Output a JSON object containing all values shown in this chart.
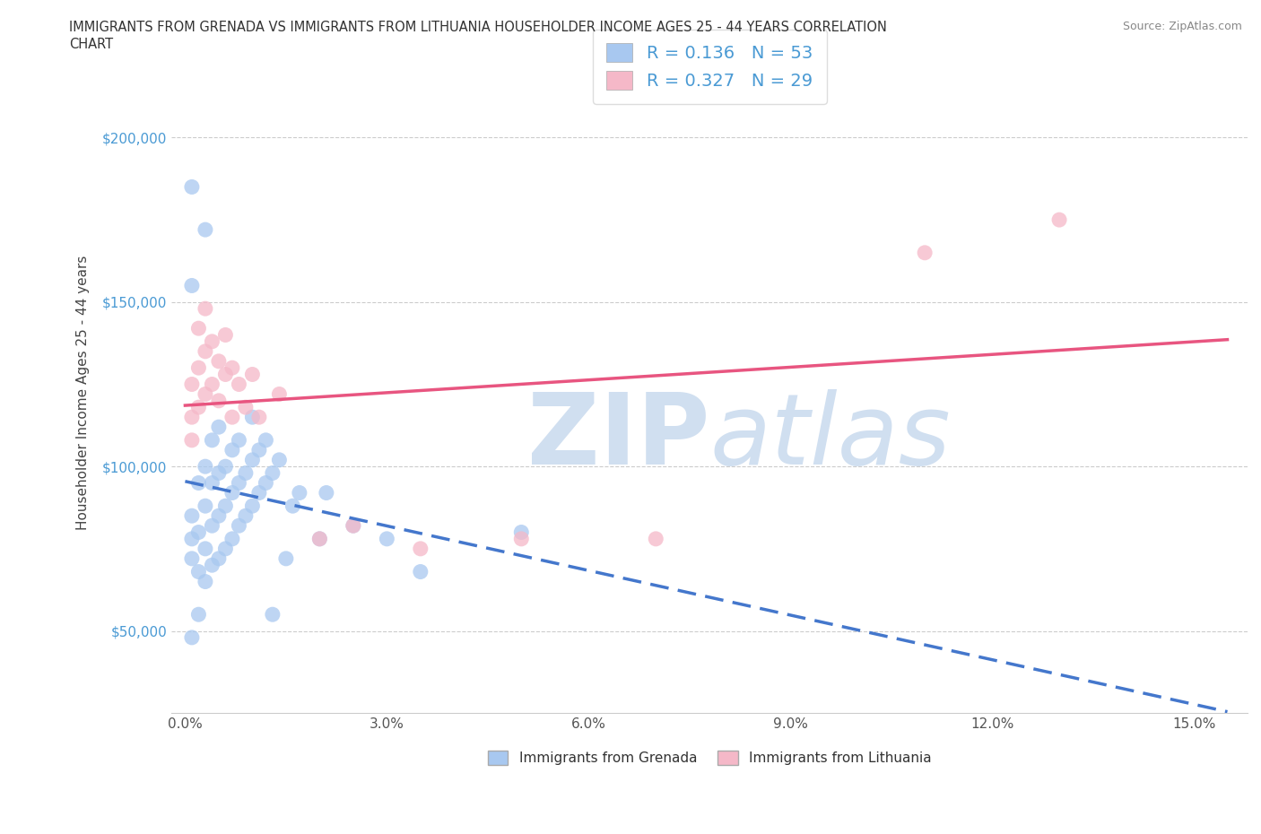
{
  "title_line1": "IMMIGRANTS FROM GRENADA VS IMMIGRANTS FROM LITHUANIA HOUSEHOLDER INCOME AGES 25 - 44 YEARS CORRELATION",
  "title_line2": "CHART",
  "source_text": "Source: ZipAtlas.com",
  "ylabel": "Householder Income Ages 25 - 44 years",
  "xlabel_ticks": [
    "0.0%",
    "3.0%",
    "6.0%",
    "9.0%",
    "12.0%",
    "15.0%"
  ],
  "xlabel_vals": [
    0.0,
    0.03,
    0.06,
    0.09,
    0.12,
    0.15
  ],
  "ytick_labels": [
    "$50,000",
    "$100,000",
    "$150,000",
    "$200,000"
  ],
  "ytick_vals": [
    50000,
    100000,
    150000,
    200000
  ],
  "xlim": [
    -0.002,
    0.158
  ],
  "ylim": [
    25000,
    220000
  ],
  "grenada_color": "#a8c8f0",
  "lithuania_color": "#f5b8c8",
  "grenada_line_color": "#4477cc",
  "lithuania_line_color": "#e85580",
  "background_color": "#ffffff",
  "watermark_color": "#d0dff0",
  "R_grenada": 0.136,
  "N_grenada": 53,
  "R_lithuania": 0.327,
  "N_lithuania": 29,
  "grenada_scatter": [
    [
      0.001,
      72000
    ],
    [
      0.001,
      78000
    ],
    [
      0.001,
      85000
    ],
    [
      0.002,
      68000
    ],
    [
      0.002,
      80000
    ],
    [
      0.002,
      95000
    ],
    [
      0.003,
      65000
    ],
    [
      0.003,
      75000
    ],
    [
      0.003,
      88000
    ],
    [
      0.003,
      100000
    ],
    [
      0.004,
      70000
    ],
    [
      0.004,
      82000
    ],
    [
      0.004,
      95000
    ],
    [
      0.004,
      108000
    ],
    [
      0.005,
      72000
    ],
    [
      0.005,
      85000
    ],
    [
      0.005,
      98000
    ],
    [
      0.005,
      112000
    ],
    [
      0.006,
      75000
    ],
    [
      0.006,
      88000
    ],
    [
      0.006,
      100000
    ],
    [
      0.007,
      78000
    ],
    [
      0.007,
      92000
    ],
    [
      0.007,
      105000
    ],
    [
      0.008,
      82000
    ],
    [
      0.008,
      95000
    ],
    [
      0.008,
      108000
    ],
    [
      0.009,
      85000
    ],
    [
      0.009,
      98000
    ],
    [
      0.01,
      88000
    ],
    [
      0.01,
      102000
    ],
    [
      0.01,
      115000
    ],
    [
      0.011,
      92000
    ],
    [
      0.011,
      105000
    ],
    [
      0.012,
      95000
    ],
    [
      0.012,
      108000
    ],
    [
      0.013,
      98000
    ],
    [
      0.014,
      102000
    ],
    [
      0.015,
      72000
    ],
    [
      0.016,
      88000
    ],
    [
      0.017,
      92000
    ],
    [
      0.02,
      78000
    ],
    [
      0.021,
      92000
    ],
    [
      0.025,
      82000
    ],
    [
      0.03,
      78000
    ],
    [
      0.035,
      68000
    ],
    [
      0.05,
      80000
    ],
    [
      0.001,
      185000
    ],
    [
      0.003,
      172000
    ],
    [
      0.001,
      155000
    ],
    [
      0.001,
      48000
    ],
    [
      0.002,
      55000
    ],
    [
      0.013,
      55000
    ]
  ],
  "lithuania_scatter": [
    [
      0.001,
      115000
    ],
    [
      0.001,
      125000
    ],
    [
      0.002,
      118000
    ],
    [
      0.002,
      130000
    ],
    [
      0.002,
      142000
    ],
    [
      0.003,
      122000
    ],
    [
      0.003,
      135000
    ],
    [
      0.003,
      148000
    ],
    [
      0.004,
      125000
    ],
    [
      0.004,
      138000
    ],
    [
      0.005,
      120000
    ],
    [
      0.005,
      132000
    ],
    [
      0.006,
      128000
    ],
    [
      0.006,
      140000
    ],
    [
      0.007,
      115000
    ],
    [
      0.007,
      130000
    ],
    [
      0.008,
      125000
    ],
    [
      0.009,
      118000
    ],
    [
      0.01,
      128000
    ],
    [
      0.011,
      115000
    ],
    [
      0.014,
      122000
    ],
    [
      0.02,
      78000
    ],
    [
      0.025,
      82000
    ],
    [
      0.035,
      75000
    ],
    [
      0.05,
      78000
    ],
    [
      0.001,
      108000
    ],
    [
      0.11,
      165000
    ],
    [
      0.13,
      175000
    ],
    [
      0.07,
      78000
    ]
  ]
}
